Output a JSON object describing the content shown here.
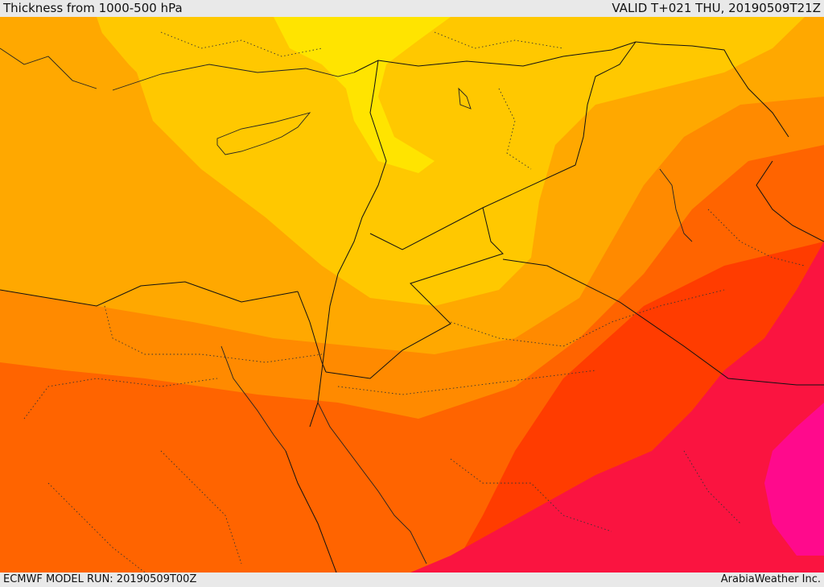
{
  "header": {
    "title": "Thickness from 1000-500 hPa",
    "valid": "VALID T+021 THU, 20190509T21Z"
  },
  "footer": {
    "model_run": "ECMWF MODEL RUN: 20190509T00Z",
    "credit": "ArabiaWeather Inc."
  },
  "palette": {
    "yellow": "#ffe400",
    "light_orange": "#ffc800",
    "orange": "#ffa800",
    "dark_orange": "#ff8a00",
    "red_orange": "#ff6400",
    "red": "#ff3c00",
    "crimson": "#fa1440",
    "magenta": "#ff0a8c",
    "border_color": "#111111"
  }
}
